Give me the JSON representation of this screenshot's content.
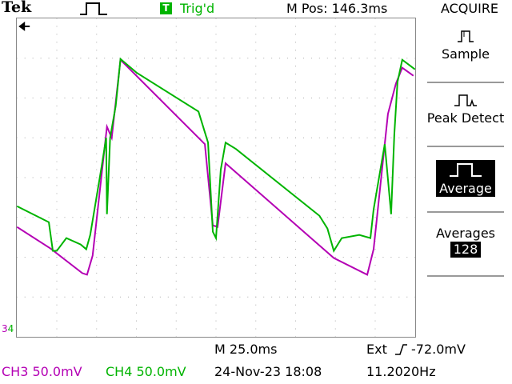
{
  "header": {
    "brand": "Tek",
    "run_icon": "square-pulse-icon",
    "trigger_box": "T",
    "trigger_status": "Trig'd",
    "m_pos": "M Pos: 146.3ms",
    "menu_title": "ACQUIRE"
  },
  "menu": {
    "items": [
      {
        "icon": "sample-icon",
        "label": "Sample",
        "selected": false
      },
      {
        "icon": "peak-detect-icon",
        "label": "Peak Detect",
        "selected": false
      },
      {
        "icon": "average-icon",
        "label": "Average",
        "selected": true
      }
    ],
    "averages_label": "Averages",
    "averages_value": "128"
  },
  "screen": {
    "grid_divisions_x": 10,
    "grid_divisions_y": 8,
    "colors": {
      "ch3": "#b400b4",
      "ch4": "#00b400",
      "grid": "#aaaaaa"
    }
  },
  "status": {
    "timebase": "M 25.0ms",
    "trigger": "Ext",
    "trigger_slope_icon": "rising-edge-icon",
    "trigger_level": "-72.0mV",
    "ch3": "CH3  50.0mV",
    "ch4": "CH4  50.0mV",
    "date": "24-Nov-23 18:08",
    "frequency": "11.2020Hz"
  },
  "markers": {
    "trigger_position_icon": "arrow-left-icon",
    "ground_ch3_label": "3",
    "ground_ch4_label": "4"
  }
}
